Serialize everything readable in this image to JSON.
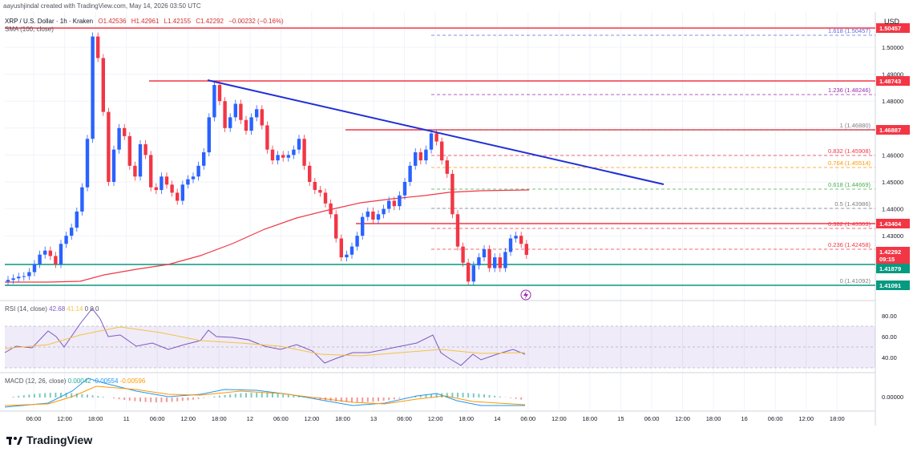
{
  "header": {
    "credit": "aayushjindal created with TradingView.com, May 14, 2026 03:50 UTC"
  },
  "symbol": {
    "name": "XRP / U.S. Dollar · 1h · Kraken",
    "open": "O1.42536",
    "high": "H1.42961",
    "low": "L1.42155",
    "close": "C1.42292",
    "change": "−0.00232 (−0.16%)"
  },
  "indicators": {
    "sma": "SMA (100, close)",
    "rsi_label": "RSI (14, close)",
    "rsi_value": "42.68",
    "rsi_value2": "41.14",
    "rsi_zeros": [
      "0",
      "0",
      "0"
    ],
    "macd_label": "MACD (12, 26, close)",
    "macd_v1": "0.00042",
    "macd_v2": "-0.00554",
    "macd_v3": "-0.00596"
  },
  "axis": {
    "currency": "USD",
    "price_ticks": [
      "1.50000",
      "1.49000",
      "1.48000",
      "1.47000",
      "1.46000",
      "1.45000",
      "1.44000",
      "1.43000"
    ],
    "rsi_ticks": [
      "80.00",
      "60.00",
      "40.00"
    ],
    "macd_ticks": [
      "0.00000"
    ],
    "time_ticks": [
      "06:00",
      "12:00",
      "18:00",
      "11",
      "06:00",
      "12:00",
      "18:00",
      "12",
      "06:00",
      "12:00",
      "18:00",
      "13",
      "06:00",
      "12:00",
      "18:00",
      "14",
      "06:00",
      "12:00",
      "18:00",
      "15",
      "06:00",
      "12:00",
      "18:00",
      "16",
      "06:00",
      "12:00",
      "18:00"
    ]
  },
  "price_labels": [
    {
      "text": "1.50457",
      "color": "#f23645"
    },
    {
      "text": "1.48743",
      "color": "#f23645"
    },
    {
      "text": "1.46887",
      "color": "#f23645"
    },
    {
      "text": "1.43404",
      "color": "#f23645"
    },
    {
      "text": "1.42292",
      "color": "#f23645"
    },
    {
      "text": "09:15",
      "color": "#f23645"
    },
    {
      "text": "1.41879",
      "color": "#089981"
    },
    {
      "text": "1.41091",
      "color": "#089981"
    }
  ],
  "fib_levels": [
    {
      "text": "1.618 (1.50457)"
    },
    {
      "text": "1.236 (1.48246)"
    },
    {
      "text": "1 (1.46880)"
    },
    {
      "text": "0.832 (1.45908)"
    },
    {
      "text": "0.764 (1.45514)"
    },
    {
      "text": "0.618 (1.44669)"
    },
    {
      "text": "0.5 (1.43986)"
    },
    {
      "text": "0.382 (1.43303)"
    },
    {
      "text": "0.236 (1.42458)"
    },
    {
      "text": "0 (1.41092)"
    }
  ],
  "colors": {
    "up": "#2962ff",
    "down": "#f23645",
    "sma": "#f23645",
    "trend": "#1f2fd6",
    "support": "#089981",
    "rsi": "#7e57c2",
    "rsi_ma": "#f5c242",
    "macd": "#2196f3",
    "signal": "#ff9800"
  },
  "branding": {
    "logo_text": "TradingView"
  }
}
